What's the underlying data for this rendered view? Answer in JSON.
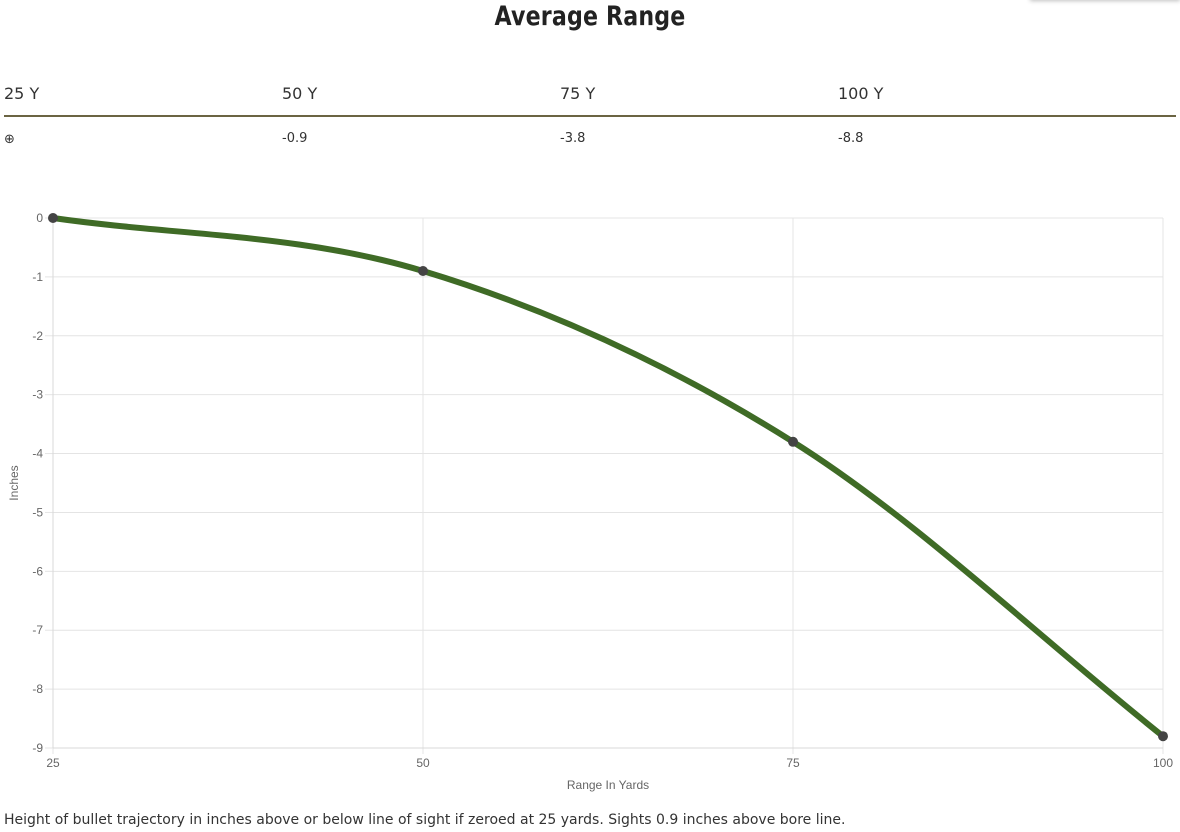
{
  "title": "Average Range",
  "table": {
    "headers": [
      "25 Y",
      "50 Y",
      "75 Y",
      "100 Y"
    ],
    "values": [
      "⊕",
      "-0.9",
      "-3.8",
      "-8.8"
    ]
  },
  "chart_data": {
    "type": "line",
    "title": "",
    "xlabel": "Range In Yards",
    "ylabel": "Inches",
    "x": [
      25,
      50,
      75,
      100
    ],
    "x_ticks": [
      "25",
      "50",
      "75",
      "100"
    ],
    "y_ticks": [
      "0",
      "-1",
      "-2",
      "-3",
      "-4",
      "-5",
      "-6",
      "-7",
      "-8",
      "-9"
    ],
    "xlim": [
      25,
      100
    ],
    "ylim": [
      -9,
      0
    ],
    "grid": true,
    "series": [
      {
        "values": [
          0,
          -0.9,
          -3.8,
          -8.8
        ],
        "color": "#3f6b26",
        "point_color": "#444444"
      }
    ]
  },
  "footnote": "Height of bullet trajectory in inches above or below line of sight if zeroed at 25 yards. Sights 0.9 inches above bore line."
}
